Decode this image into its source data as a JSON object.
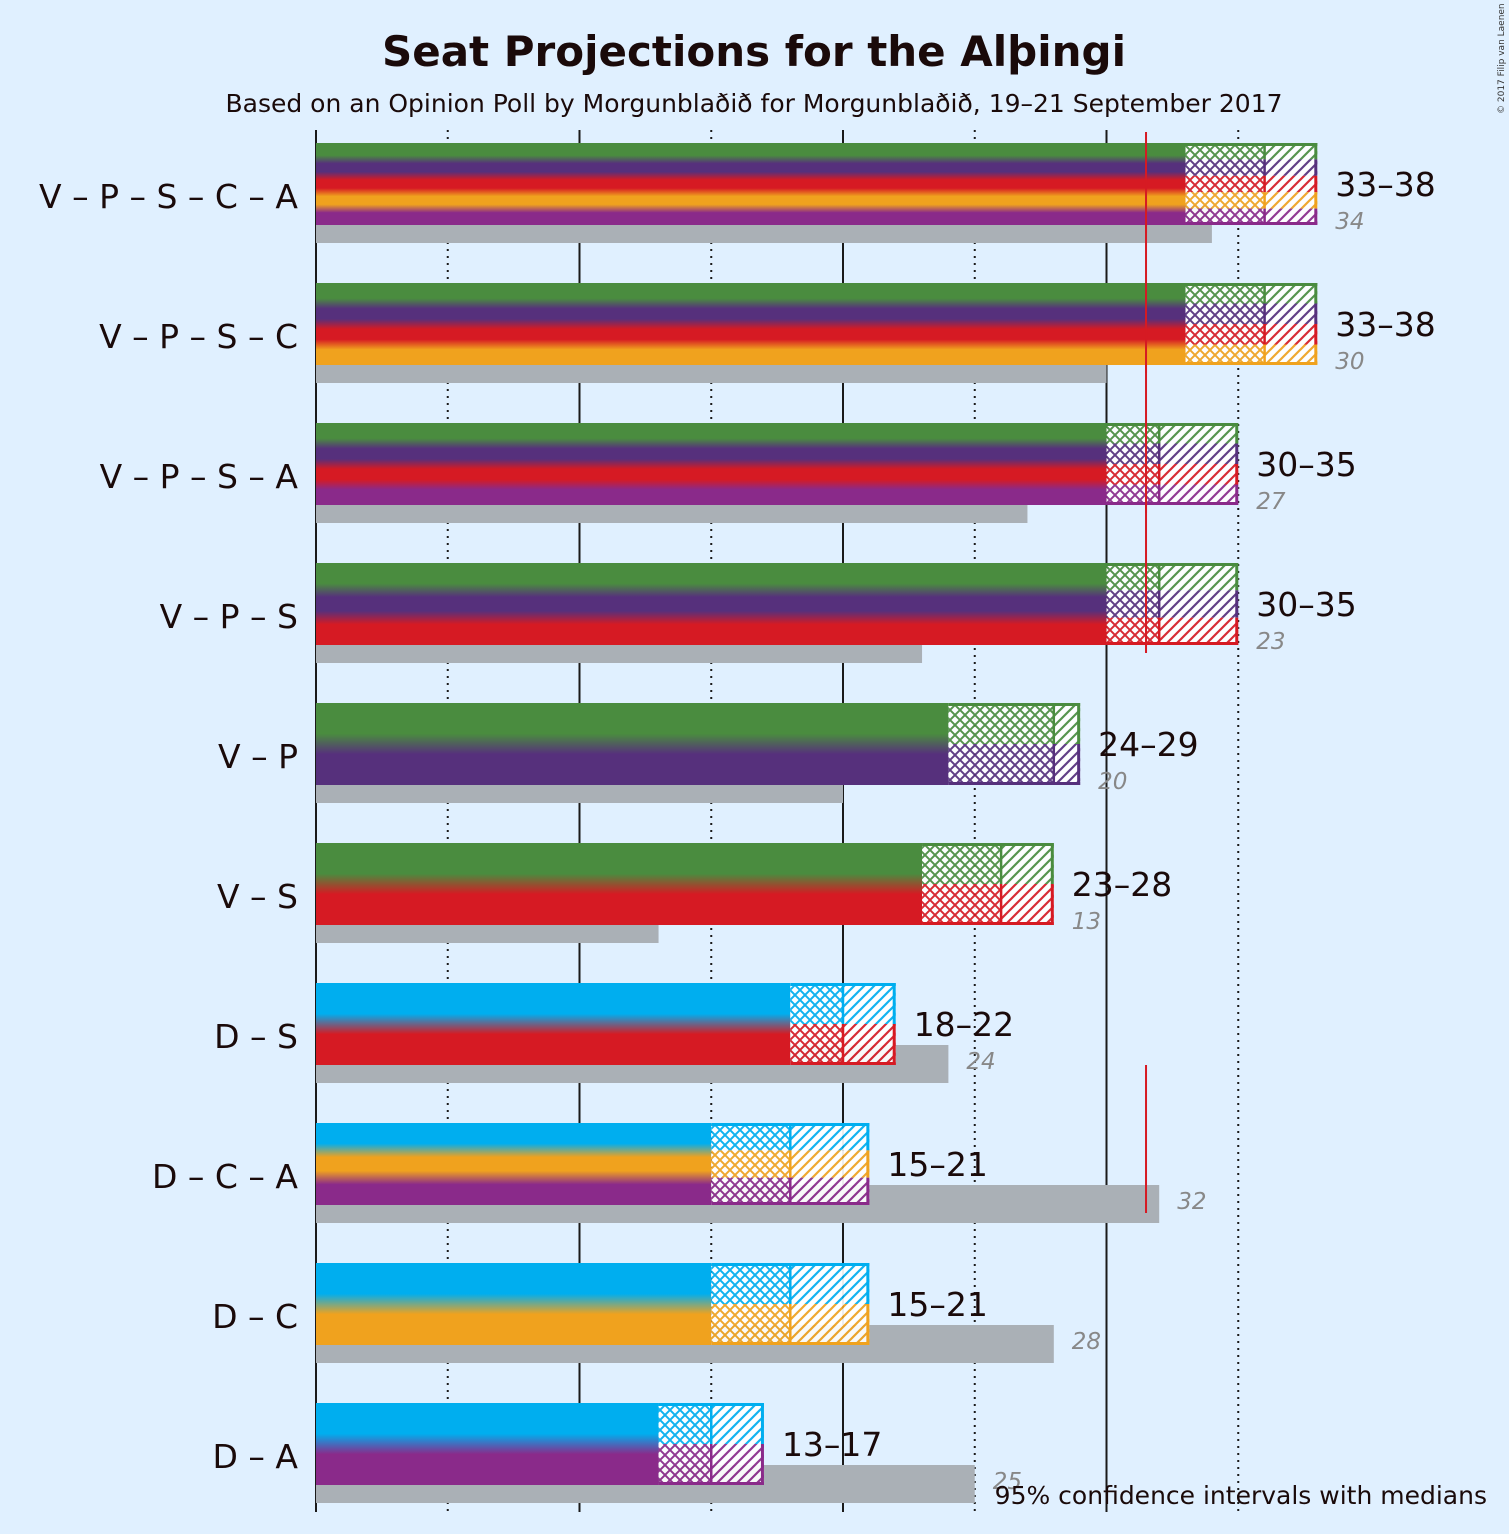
{
  "chart_data": {
    "type": "bar",
    "title": "Seat Projections for the Alþingi",
    "subtitle": "Based on an Opinion Poll by Morgunblaðið for Morgunblaðið, 19–21 September 2017",
    "copyright": "© 2017 Filip van Laenen",
    "footnote": "95% confidence intervals with medians",
    "majority": 31.5,
    "xlim": [
      0,
      38
    ],
    "gridlines_solid": [
      0,
      10,
      20,
      30
    ],
    "gridlines_dotted": [
      5,
      15,
      25,
      35
    ],
    "party_colors": {
      "V": "#4a8c3f",
      "P": "#56307c",
      "S": "#d61a23",
      "C": "#f0a21e",
      "A": "#8a2a8a",
      "D": "#00aeef"
    },
    "coalitions": [
      {
        "label": "V – P – S – C – A",
        "parties": [
          "V",
          "P",
          "S",
          "C",
          "A"
        ],
        "low": 33,
        "median": 36,
        "high": 38,
        "range_label": "33–38",
        "previous": 34
      },
      {
        "label": "V – P – S – C",
        "parties": [
          "V",
          "P",
          "S",
          "C"
        ],
        "low": 33,
        "median": 36,
        "high": 38,
        "range_label": "33–38",
        "previous": 30
      },
      {
        "label": "V – P – S – A",
        "parties": [
          "V",
          "P",
          "S",
          "A"
        ],
        "low": 30,
        "median": 32,
        "high": 35,
        "range_label": "30–35",
        "previous": 27
      },
      {
        "label": "V – P – S",
        "parties": [
          "V",
          "P",
          "S"
        ],
        "low": 30,
        "median": 32,
        "high": 35,
        "range_label": "30–35",
        "previous": 23
      },
      {
        "label": "V – P",
        "parties": [
          "V",
          "P"
        ],
        "low": 24,
        "median": 28,
        "high": 29,
        "range_label": "24–29",
        "previous": 20
      },
      {
        "label": "V – S",
        "parties": [
          "V",
          "S"
        ],
        "low": 23,
        "median": 26,
        "high": 28,
        "range_label": "23–28",
        "previous": 13
      },
      {
        "label": "D – S",
        "parties": [
          "D",
          "S"
        ],
        "low": 18,
        "median": 20,
        "high": 22,
        "range_label": "18–22",
        "previous": 24
      },
      {
        "label": "D – C – A",
        "parties": [
          "D",
          "C",
          "A"
        ],
        "low": 15,
        "median": 18,
        "high": 21,
        "range_label": "15–21",
        "previous": 32
      },
      {
        "label": "D – C",
        "parties": [
          "D",
          "C"
        ],
        "low": 15,
        "median": 18,
        "high": 21,
        "range_label": "15–21",
        "previous": 28
      },
      {
        "label": "D – A",
        "parties": [
          "D",
          "A"
        ],
        "low": 13,
        "median": 15,
        "high": 17,
        "range_label": "13–17",
        "previous": 25
      }
    ]
  }
}
